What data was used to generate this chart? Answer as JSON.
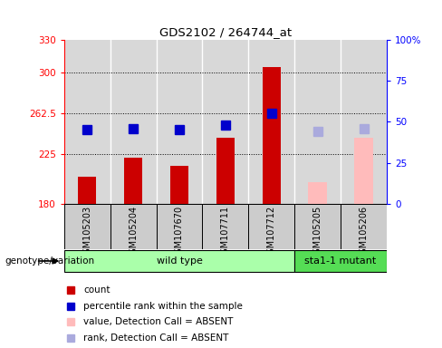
{
  "title": "GDS2102 / 264744_at",
  "samples": [
    "GSM105203",
    "GSM105204",
    "GSM107670",
    "GSM107711",
    "GSM107712",
    "GSM105205",
    "GSM105206"
  ],
  "groups": [
    "wild type",
    "wild type",
    "wild type",
    "wild type",
    "wild type",
    "sta1-1 mutant",
    "sta1-1 mutant"
  ],
  "bar_values": [
    205,
    222,
    215,
    240,
    305,
    200,
    240
  ],
  "bar_absent": [
    false,
    false,
    false,
    false,
    false,
    true,
    true
  ],
  "percentile_values": [
    248,
    249,
    248,
    252,
    263,
    246,
    249
  ],
  "percentile_absent": [
    false,
    false,
    false,
    false,
    false,
    true,
    true
  ],
  "bar_color_present": "#cc0000",
  "bar_color_absent": "#ffbbbb",
  "percentile_color_present": "#0000cc",
  "percentile_color_absent": "#aaaadd",
  "ylim_left": [
    180,
    330
  ],
  "ylim_right": [
    0,
    100
  ],
  "yticks_left": [
    180,
    225,
    262.5,
    300,
    330
  ],
  "yticks_right": [
    0,
    25,
    50,
    75,
    100
  ],
  "ytick_labels_left": [
    "180",
    "225",
    "262.5",
    "300",
    "330"
  ],
  "ytick_labels_right": [
    "0",
    "25",
    "50",
    "75",
    "100%"
  ],
  "wildtype_color": "#aaffaa",
  "mutant_color": "#55dd55",
  "group_label": "genotype/variation",
  "legend_items": [
    {
      "label": "count",
      "color": "#cc0000"
    },
    {
      "label": "percentile rank within the sample",
      "color": "#0000cc"
    },
    {
      "label": "value, Detection Call = ABSENT",
      "color": "#ffbbbb"
    },
    {
      "label": "rank, Detection Call = ABSENT",
      "color": "#aaaadd"
    }
  ],
  "bar_width": 0.4,
  "percentile_marker_size": 7,
  "background_color": "#d8d8d8"
}
